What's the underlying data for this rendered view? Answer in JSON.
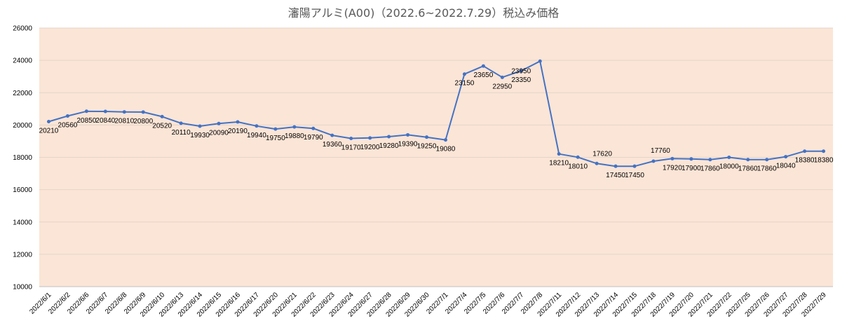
{
  "chart_data": {
    "type": "line",
    "title": "瀋陽アルミ(A00)（2022.6~2022.7.29）税込み価格",
    "xlabel": "",
    "ylabel": "",
    "ylim": [
      10000,
      26000
    ],
    "yticks": [
      "10000",
      "12000",
      "14000",
      "16000",
      "18000",
      "20000",
      "22000",
      "24000",
      "26000"
    ],
    "grid": true,
    "legend": "none",
    "colors": {
      "line": "#4472C4",
      "plot_bg": "#FBE5D6",
      "grid": "#E3D5CA",
      "title": "#595959"
    },
    "categories": [
      "2022/6/1",
      "2022/6/2",
      "2022/6/6",
      "2022/6/7",
      "2022/6/8",
      "2022/6/9",
      "2022/6/10",
      "2022/6/13",
      "2022/6/14",
      "2022/6/15",
      "2022/6/16",
      "2022/6/17",
      "2022/6/20",
      "2022/6/21",
      "2022/6/22",
      "2022/6/23",
      "2022/6/24",
      "2022/6/27",
      "2022/6/28",
      "2022/6/29",
      "2022/6/30",
      "2022/7/1",
      "2022/7/4",
      "2022/7/5",
      "2022/7/6",
      "2022/7/7",
      "2022/7/8",
      "2022/7/11",
      "2022/7/12",
      "2022/7/13",
      "2022/7/14",
      "2022/7/15",
      "2022/7/18",
      "2022/7/19",
      "2022/7/20",
      "2022/7/21",
      "2022/7/22",
      "2022/7/25",
      "2022/7/26",
      "2022/7/27",
      "2022/7/28",
      "2022/7/29"
    ],
    "series": [
      {
        "values": [
          20210,
          20560,
          20850,
          20840,
          20810,
          20800,
          20520,
          20110,
          19930,
          20090,
          20190,
          19940,
          19750,
          19880,
          19790,
          19360,
          19170,
          19200,
          19280,
          19390,
          19250,
          19080,
          23150,
          23650,
          22950,
          23350,
          23950,
          18210,
          18010,
          17620,
          17450,
          17450,
          17760,
          17920,
          17900,
          17860,
          18000,
          17860,
          17860,
          18040,
          18380,
          18380
        ]
      }
    ],
    "data_labels": [
      "20210",
      "20560",
      "20850",
      "20840",
      "20810",
      "20800",
      "20520",
      "20110",
      "19930",
      "20090",
      "20190",
      "19940",
      "19750",
      "19880",
      "19790",
      "19360",
      "19170",
      "19200",
      "19280",
      "19390",
      "19250",
      "19080",
      "23150",
      "23650",
      "22950",
      "23350",
      "23950",
      "18210",
      "18010",
      "17620",
      "17450",
      "17450",
      "17760",
      "17920",
      "17900",
      "17860",
      "18000",
      "17860",
      "17860",
      "18040",
      "18380",
      "18380"
    ]
  }
}
